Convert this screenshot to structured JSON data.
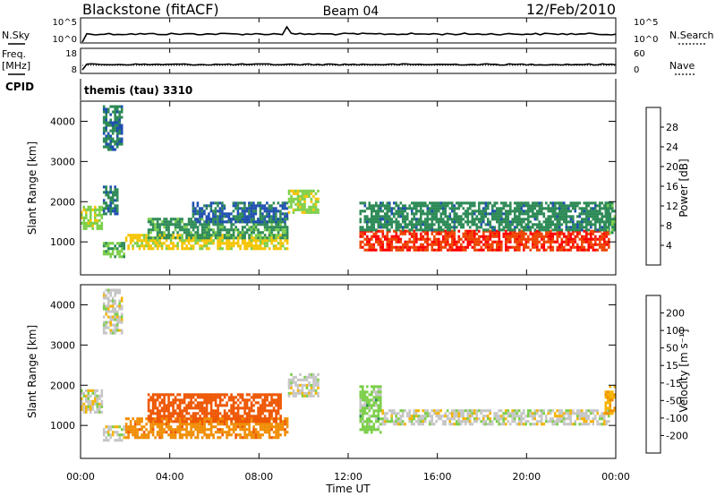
{
  "header": {
    "station": "Blackstone (fitACF)",
    "beam": "Beam 04",
    "date": "12/Feb/2010"
  },
  "noise_panel": {
    "left_label": "N.Sky",
    "right_label": "N.Search",
    "left_ticks": [
      "10^5",
      "10^0"
    ],
    "right_ticks": [
      "10^5",
      "10^0"
    ]
  },
  "freq_panel": {
    "left_label_1": "Freq.",
    "left_label_2": "[MHz]",
    "right_label": "Nave",
    "left_ticks": [
      "18",
      "8"
    ],
    "right_ticks": [
      "60",
      "0"
    ]
  },
  "cpid_panel": {
    "label": "CPID",
    "value": "themis (tau) 3310"
  },
  "x_axis": {
    "ticks": [
      "00:00",
      "04:00",
      "08:00",
      "12:00",
      "16:00",
      "20:00",
      "00:00"
    ],
    "label": "Time UT"
  },
  "power_panel": {
    "ylabel": "Slant Range [km]",
    "yticks": [
      "1000",
      "2000",
      "3000",
      "4000"
    ],
    "colorbar_label": "Power [dB]",
    "colorbar_ticks": [
      "4",
      "8",
      "12",
      "16",
      "20",
      "24",
      "28"
    ]
  },
  "velocity_panel": {
    "ylabel": "Slant Range [km]",
    "yticks": [
      "1000",
      "2000",
      "3000",
      "4000"
    ],
    "colorbar_label": "Velocity [m s⁻¹]",
    "colorbar_ticks": [
      "200",
      "100",
      "50",
      "15",
      "-15",
      "-50",
      "-100",
      "-200"
    ]
  },
  "colors": {
    "power_scale": [
      "#0000ff",
      "#1f4fb0",
      "#2e8b57",
      "#7ccf4a",
      "#f5c400",
      "#f08c00",
      "#ee4400",
      "#ff0000"
    ],
    "velocity_scale": [
      "#1a3aa8",
      "#2f6cb4",
      "#2e8b57",
      "#7ccf4a",
      "#c6c6c6",
      "#f5b400",
      "#f08c00",
      "#ee5500",
      "#ff0000"
    ]
  },
  "chart_data": [
    {
      "type": "heatmap",
      "title": "Power",
      "x_range_hours": [
        0,
        24
      ],
      "y_range_km": [
        180,
        4500
      ],
      "z_range": [
        0,
        30
      ],
      "z_label": "Power [dB]",
      "regions": [
        {
          "t": [
            0.0,
            1.0
          ],
          "r": [
            1300,
            1900
          ],
          "value": 14
        },
        {
          "t": [
            1.0,
            1.7
          ],
          "r": [
            1700,
            2400
          ],
          "value": 8
        },
        {
          "t": [
            1.0,
            1.9
          ],
          "r": [
            3300,
            4400
          ],
          "value": 8
        },
        {
          "t": [
            1.0,
            2.0
          ],
          "r": [
            650,
            1000
          ],
          "value": 12
        },
        {
          "t": [
            2.0,
            9.3
          ],
          "r": [
            800,
            1200
          ],
          "value": 16
        },
        {
          "t": [
            3.0,
            9.3
          ],
          "r": [
            1100,
            1600
          ],
          "value": 10
        },
        {
          "t": [
            5.0,
            9.3
          ],
          "r": [
            1500,
            2000
          ],
          "value": 7
        },
        {
          "t": [
            9.3,
            10.7
          ],
          "r": [
            1700,
            2300
          ],
          "value": 14
        },
        {
          "t": [
            12.5,
            23.7
          ],
          "r": [
            800,
            1300
          ],
          "value": 26
        },
        {
          "t": [
            12.5,
            23.7
          ],
          "r": [
            1300,
            2000
          ],
          "value": 9
        },
        {
          "t": [
            23.5,
            24.0
          ],
          "r": [
            1200,
            2000
          ],
          "value": 10
        }
      ]
    },
    {
      "type": "heatmap",
      "title": "Velocity",
      "x_range_hours": [
        0,
        24
      ],
      "y_range_km": [
        180,
        4500
      ],
      "z_range": [
        -200,
        200
      ],
      "z_label": "Velocity [m s⁻¹]",
      "regions": [
        {
          "t": [
            0.0,
            1.0
          ],
          "r": [
            1300,
            1900
          ],
          "value": 0
        },
        {
          "t": [
            1.0,
            1.9
          ],
          "r": [
            3300,
            4400
          ],
          "value": 0
        },
        {
          "t": [
            1.0,
            2.0
          ],
          "r": [
            650,
            1000
          ],
          "value": 0
        },
        {
          "t": [
            2.0,
            9.3
          ],
          "r": [
            700,
            1200
          ],
          "value": -80
        },
        {
          "t": [
            3.0,
            9.0
          ],
          "r": [
            1100,
            1800
          ],
          "value": -130
        },
        {
          "t": [
            9.3,
            10.7
          ],
          "r": [
            1700,
            2300
          ],
          "value": 0
        },
        {
          "t": [
            12.5,
            13.5
          ],
          "r": [
            800,
            2000
          ],
          "value": 30
        },
        {
          "t": [
            13.5,
            23.7
          ],
          "r": [
            1000,
            1400
          ],
          "value": 0
        },
        {
          "t": [
            23.5,
            24.0
          ],
          "r": [
            1300,
            2000
          ],
          "value": -40
        }
      ]
    }
  ]
}
